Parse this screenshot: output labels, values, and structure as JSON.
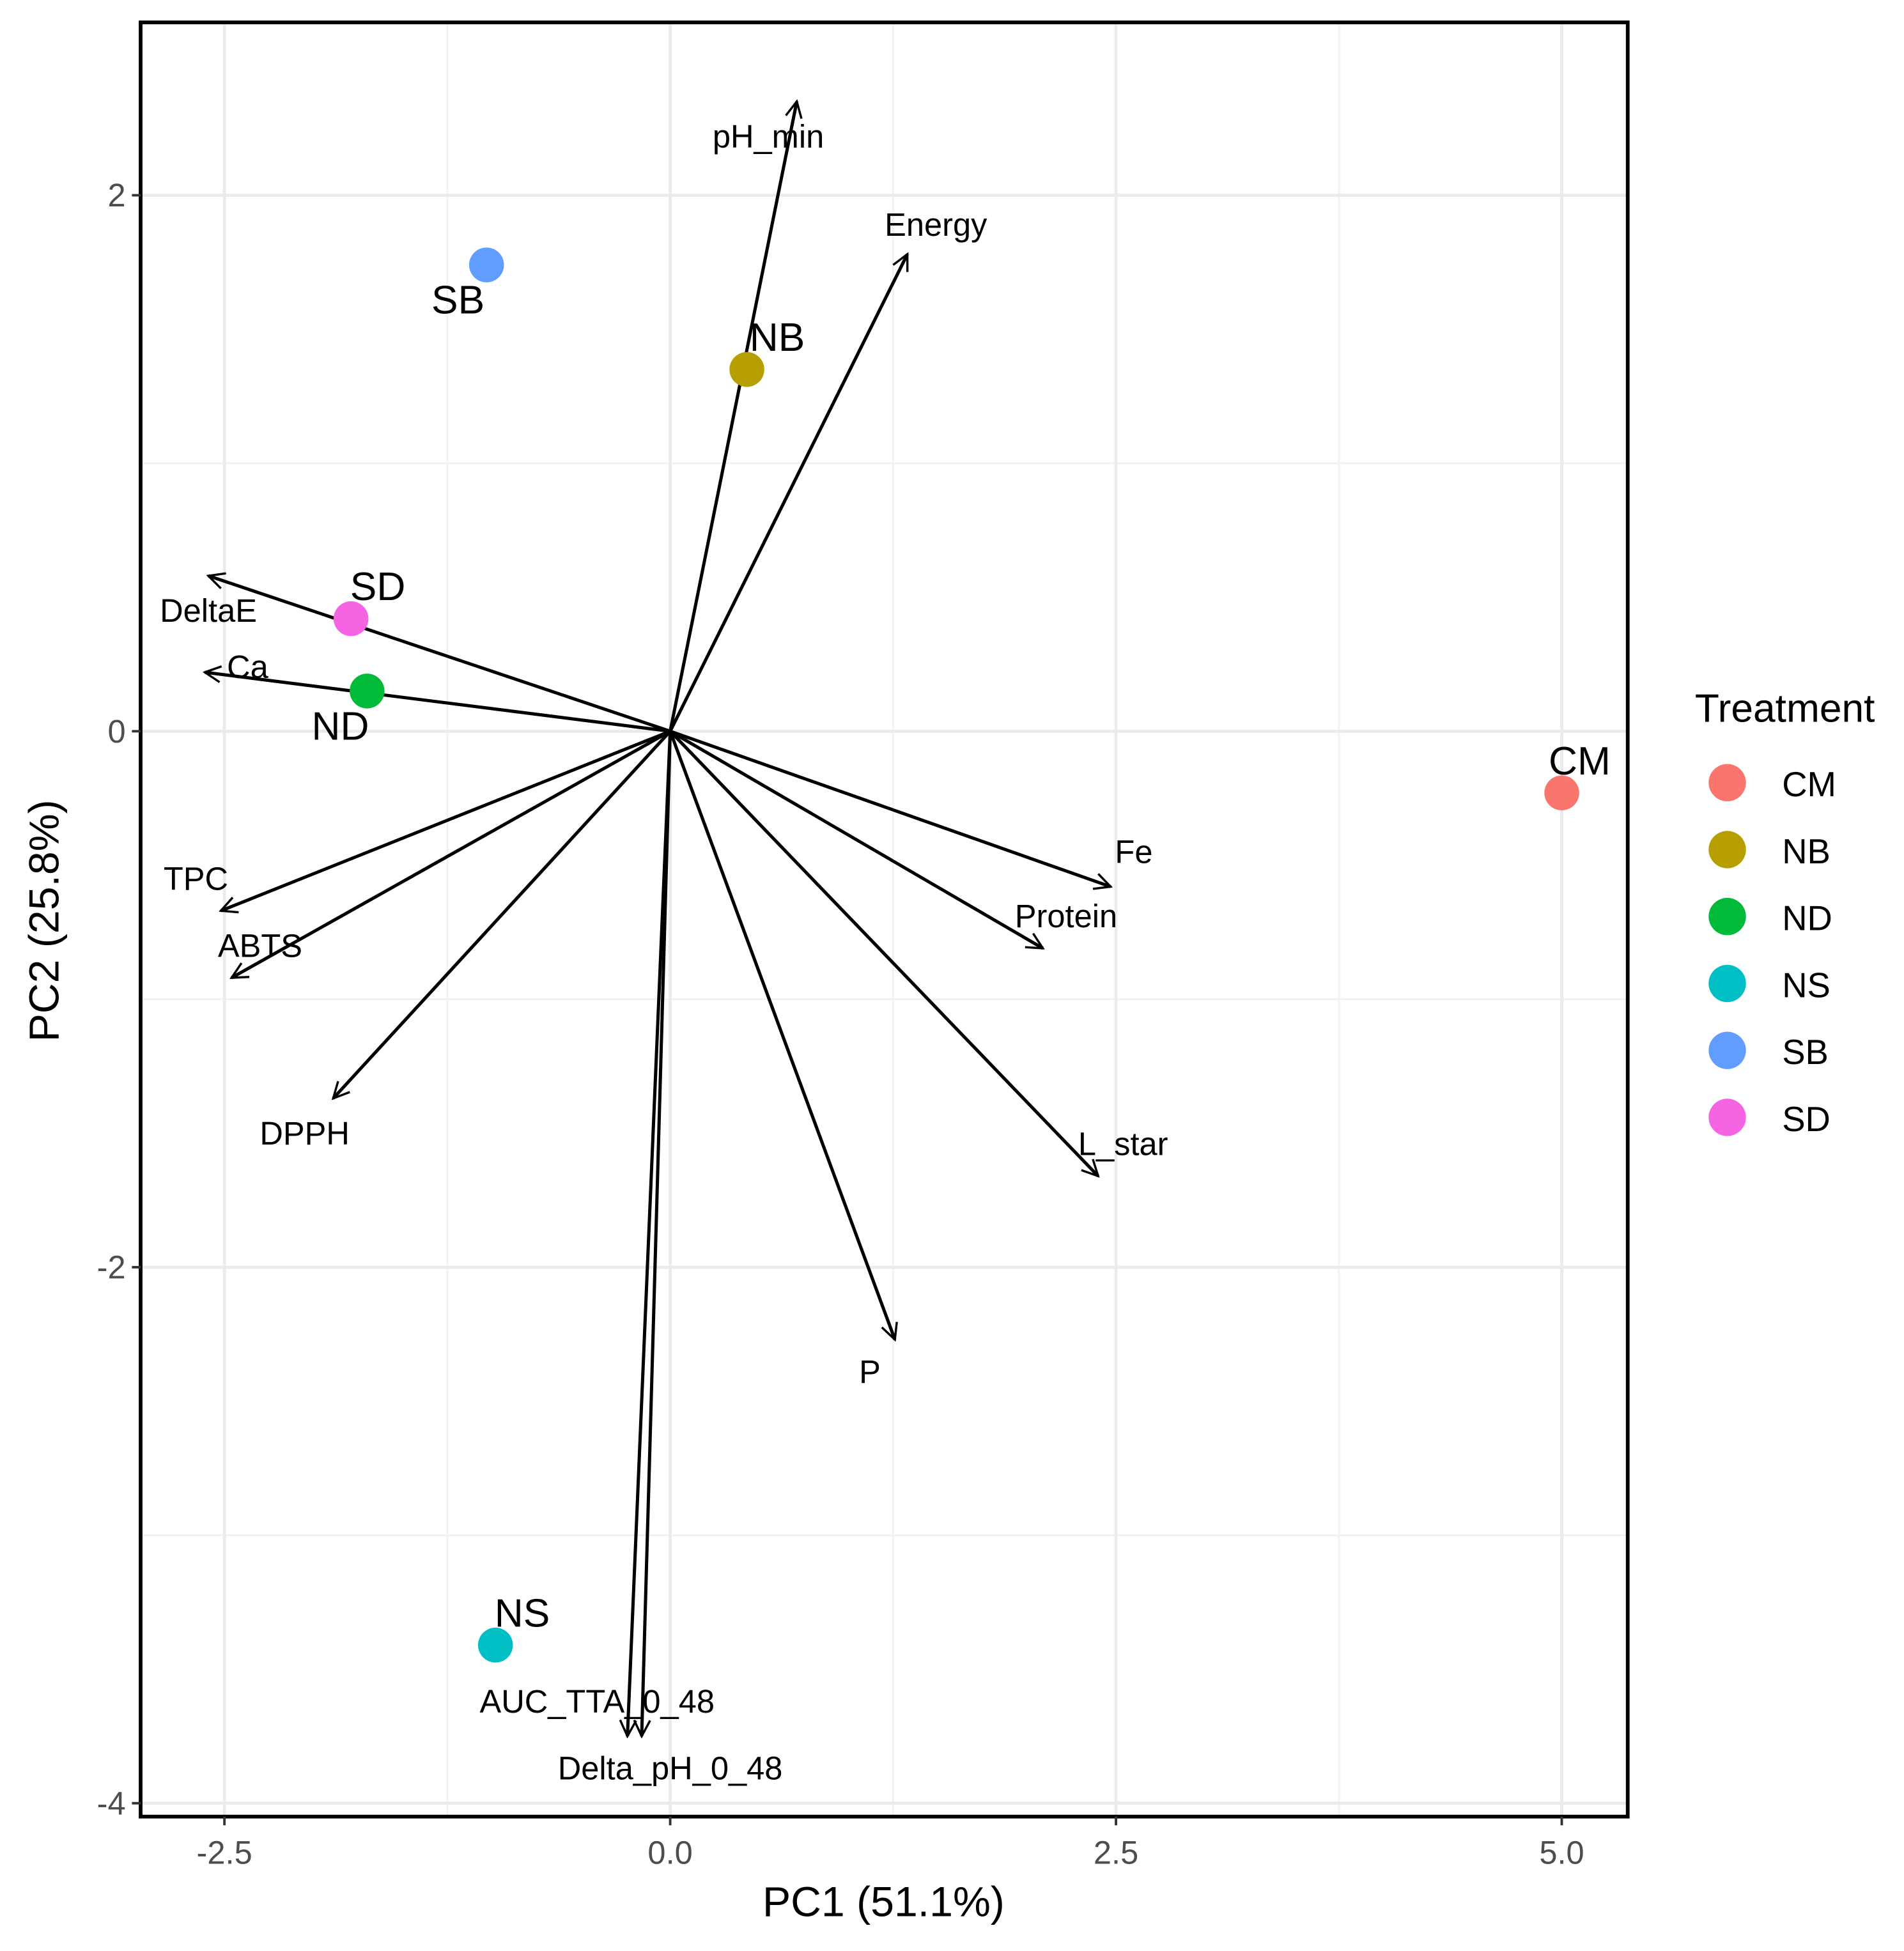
{
  "chart_data": {
    "type": "scatter",
    "subtype": "pca-biplot",
    "xlabel": "PC1 (51.1%)",
    "ylabel": "PC2 (25.8%)",
    "xlim": [
      -2.97,
      5.37
    ],
    "ylim": [
      -4.05,
      2.645
    ],
    "xticks": [
      -2.5,
      0.0,
      2.5,
      5.0
    ],
    "xtick_labels": [
      "-2.5",
      "0.0",
      "2.5",
      "5.0"
    ],
    "yticks": [
      -4,
      -2,
      0,
      2
    ],
    "ytick_labels": [
      "-4",
      "-2",
      "0",
      "2"
    ],
    "grid": true,
    "legend": {
      "title": "Treatment",
      "placement": "right",
      "entries": [
        "CM",
        "NB",
        "ND",
        "NS",
        "SB",
        "SD"
      ]
    },
    "points": [
      {
        "name": "CM",
        "x": 5.0,
        "y": -0.23,
        "color": "#F8766D",
        "label_x": 5.1,
        "label_y": -0.11
      },
      {
        "name": "NB",
        "x": 0.43,
        "y": 1.35,
        "color": "#B79F00",
        "label_x": 0.6,
        "label_y": 1.47
      },
      {
        "name": "ND",
        "x": -1.7,
        "y": 0.15,
        "color": "#00BA38",
        "label_x": -1.85,
        "label_y": 0.02
      },
      {
        "name": "NS",
        "x": -0.98,
        "y": -3.41,
        "color": "#00BFC4",
        "label_x": -0.83,
        "label_y": -3.29
      },
      {
        "name": "SB",
        "x": -1.03,
        "y": 1.74,
        "color": "#619CFF",
        "label_x": -1.19,
        "label_y": 1.61
      },
      {
        "name": "SD",
        "x": -1.79,
        "y": 0.42,
        "color": "#F564E3",
        "label_x": -1.64,
        "label_y": 0.54
      }
    ],
    "loadings": [
      {
        "name": "pH_min",
        "x": 0.71,
        "y": 2.35,
        "label_x": 0.55,
        "label_y": 2.22
      },
      {
        "name": "Energy",
        "x": 1.33,
        "y": 1.78,
        "label_x": 1.49,
        "label_y": 1.89
      },
      {
        "name": "DeltaE",
        "x": -2.59,
        "y": 0.58,
        "label_x": -2.59,
        "label_y": 0.45
      },
      {
        "name": "Ca",
        "x": -2.61,
        "y": 0.22,
        "label_x": -2.37,
        "label_y": 0.24
      },
      {
        "name": "TPC",
        "x": -2.52,
        "y": -0.67,
        "label_x": -2.66,
        "label_y": -0.55
      },
      {
        "name": "ABTS",
        "x": -2.46,
        "y": -0.92,
        "label_x": -2.3,
        "label_y": -0.8
      },
      {
        "name": "DPPH",
        "x": -1.89,
        "y": -1.37,
        "label_x": -2.05,
        "label_y": -1.5
      },
      {
        "name": "Fe",
        "x": 2.47,
        "y": -0.58,
        "label_x": 2.6,
        "label_y": -0.45
      },
      {
        "name": "Protein",
        "x": 2.09,
        "y": -0.81,
        "label_x": 2.22,
        "label_y": -0.69
      },
      {
        "name": "L_star",
        "x": 2.4,
        "y": -1.66,
        "label_x": 2.54,
        "label_y": -1.54
      },
      {
        "name": "P",
        "x": 1.26,
        "y": -2.27,
        "label_x": 1.12,
        "label_y": -2.39
      },
      {
        "name": "AUC_TTA_0_48",
        "x": -0.24,
        "y": -3.75,
        "label_x": -0.41,
        "label_y": -3.62
      },
      {
        "name": "Delta_pH_0_48",
        "x": -0.16,
        "y": -3.75,
        "label_x": 0.0,
        "label_y": -3.87
      }
    ]
  }
}
